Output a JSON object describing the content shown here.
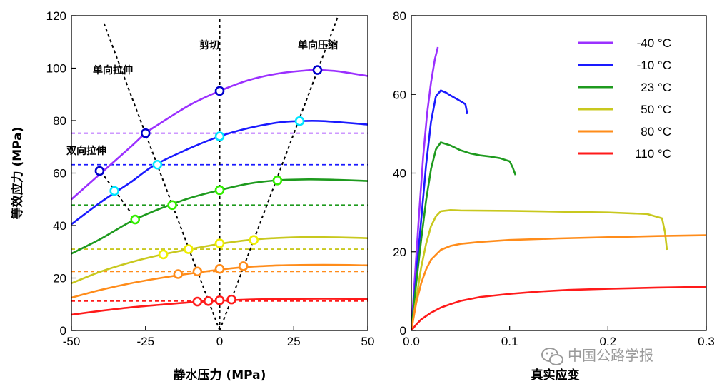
{
  "chart_data": [
    {
      "type": "line",
      "xlabel": "静水压力 (MPa)",
      "ylabel": "等效应力 (MPa)",
      "xlim": [
        -50,
        50
      ],
      "ylim": [
        0,
        120
      ],
      "xticks": [
        -50,
        -25,
        0,
        25,
        50
      ],
      "yticks": [
        0,
        20,
        40,
        60,
        80,
        100,
        120
      ],
      "grid": false,
      "series": [
        {
          "color": "#9b30ff",
          "x": [
            -50,
            -40,
            -30,
            -25,
            -20,
            -10,
            0,
            10,
            20,
            30,
            33,
            40,
            50
          ],
          "y": [
            50,
            60,
            70,
            75.2,
            79,
            86,
            91.3,
            95.5,
            98,
            99.2,
            99.3,
            98.8,
            97
          ]
        },
        {
          "color": "#1a1aff",
          "x": [
            -50,
            -40,
            -30,
            -22,
            -10,
            0,
            10,
            20,
            27,
            35,
            50
          ],
          "y": [
            40.5,
            49,
            56.5,
            63,
            69.5,
            74,
            77.2,
            79.3,
            79.8,
            79.8,
            78.5
          ]
        },
        {
          "color": "#1e9a1e",
          "x": [
            -50,
            -40,
            -30,
            -20,
            -10,
            0,
            10,
            19,
            30,
            40,
            50
          ],
          "y": [
            29.3,
            35,
            41.5,
            46.5,
            50.5,
            53.5,
            56,
            57.2,
            57.6,
            57.4,
            57
          ]
        },
        {
          "color": "#c8c81e",
          "x": [
            -50,
            -40,
            -30,
            -20,
            -10,
            0,
            10,
            20,
            30,
            40,
            50
          ],
          "y": [
            18,
            22.5,
            26,
            28.8,
            31,
            33,
            34.5,
            35.3,
            35.6,
            35.5,
            35.2
          ]
        },
        {
          "color": "#ff8c1a",
          "x": [
            -50,
            -40,
            -30,
            -20,
            -10,
            0,
            10,
            20,
            30,
            40,
            50
          ],
          "y": [
            12.5,
            15.5,
            18,
            20,
            21.7,
            23.2,
            24.3,
            24.8,
            25,
            25,
            24.8
          ]
        },
        {
          "color": "#ff1a1a",
          "x": [
            -50,
            -40,
            -30,
            -20,
            -10,
            0,
            10,
            20,
            30,
            40,
            50
          ],
          "y": [
            6,
            7.5,
            8.8,
            9.8,
            10.7,
            11.3,
            11.8,
            12,
            12.1,
            12.1,
            12
          ]
        }
      ],
      "dashed_refs": [
        {
          "color": "#9b30ff",
          "y": 75.2
        },
        {
          "color": "#1a1aff",
          "y": 63.2
        },
        {
          "color": "#1e9a1e",
          "y": 47.8
        },
        {
          "color": "#c8c81e",
          "y": 31
        },
        {
          "color": "#ff8c1a",
          "y": 22.5
        },
        {
          "color": "#ff1a1a",
          "y": 11.2
        }
      ],
      "stress_state_lines": [
        {
          "label": "单向拉伸",
          "x": [
            -39,
            0
          ],
          "y": [
            117,
            0
          ]
        },
        {
          "label": "剪切",
          "x": [
            0,
            0
          ],
          "y": [
            0,
            120
          ]
        },
        {
          "label": "单向压缩",
          "x": [
            0,
            40
          ],
          "y": [
            0,
            120
          ]
        },
        {
          "label": "双向拉伸",
          "x": [
            -40,
            -30
          ],
          "y": [
            60.5,
            45
          ]
        }
      ],
      "markers": [
        {
          "color": "#0000cc",
          "x": -25,
          "y": 75.2
        },
        {
          "color": "#0000cc",
          "x": 0,
          "y": 91.3
        },
        {
          "color": "#0000cc",
          "x": 33,
          "y": 99.3
        },
        {
          "color": "#0000cc",
          "x": -40.5,
          "y": 60.8
        },
        {
          "color": "#00e5ff",
          "x": -21,
          "y": 63.2
        },
        {
          "color": "#00e5ff",
          "x": 0,
          "y": 74
        },
        {
          "color": "#00e5ff",
          "x": 27,
          "y": 79.8
        },
        {
          "color": "#00e5ff",
          "x": -35.5,
          "y": 53.2
        },
        {
          "color": "#33ee00",
          "x": -16,
          "y": 47.8
        },
        {
          "color": "#33ee00",
          "x": 0,
          "y": 53.5
        },
        {
          "color": "#33ee00",
          "x": 19.5,
          "y": 57.2
        },
        {
          "color": "#33ee00",
          "x": -28.5,
          "y": 42.3
        },
        {
          "color": "#eeee00",
          "x": -10.5,
          "y": 31
        },
        {
          "color": "#eeee00",
          "x": 0,
          "y": 33.2
        },
        {
          "color": "#eeee00",
          "x": 11.5,
          "y": 34.5
        },
        {
          "color": "#eeee00",
          "x": -19,
          "y": 29
        },
        {
          "color": "#ff8c1a",
          "x": -7.5,
          "y": 22.5
        },
        {
          "color": "#ff8c1a",
          "x": 0,
          "y": 23.5
        },
        {
          "color": "#ff8c1a",
          "x": 8,
          "y": 24.5
        },
        {
          "color": "#ff8c1a",
          "x": -14,
          "y": 21.5
        },
        {
          "color": "#ff1a1a",
          "x": -3.8,
          "y": 11.2
        },
        {
          "color": "#ff1a1a",
          "x": 0,
          "y": 11.5
        },
        {
          "color": "#ff1a1a",
          "x": 4,
          "y": 11.8
        },
        {
          "color": "#ff1a1a",
          "x": -7.5,
          "y": 11
        }
      ]
    },
    {
      "type": "line",
      "xlabel": "真实应变",
      "ylabel": "",
      "xlim": [
        0,
        0.3
      ],
      "ylim": [
        0,
        80
      ],
      "xticks": [
        0.0,
        0.1,
        0.2,
        0.3
      ],
      "xtick_labels": [
        "0.0",
        "0.1",
        "0.2",
        "0.3"
      ],
      "yticks": [
        0,
        20,
        40,
        60,
        80
      ],
      "grid": false,
      "legend_position": "top-right",
      "legend_unit": "°C",
      "series": [
        {
          "name": "-40",
          "color": "#9b30ff",
          "x": [
            0,
            0.004,
            0.008,
            0.012,
            0.016,
            0.02,
            0.024,
            0.027
          ],
          "y": [
            0,
            15,
            30,
            44,
            55,
            63,
            69,
            72
          ]
        },
        {
          "name": "-10",
          "color": "#1a1aff",
          "x": [
            0,
            0.005,
            0.01,
            0.015,
            0.02,
            0.025,
            0.03,
            0.035,
            0.04,
            0.045,
            0.05,
            0.055,
            0.057
          ],
          "y": [
            0,
            14,
            28,
            42,
            53,
            59.5,
            61,
            60.5,
            59.7,
            59,
            58.3,
            57.5,
            55
          ]
        },
        {
          "name": "23",
          "color": "#1e9a1e",
          "x": [
            0,
            0.005,
            0.01,
            0.015,
            0.02,
            0.025,
            0.03,
            0.04,
            0.05,
            0.06,
            0.07,
            0.08,
            0.09,
            0.1,
            0.103,
            0.106
          ],
          "y": [
            0,
            12,
            23,
            33,
            41,
            46,
            47.8,
            47,
            45.8,
            45,
            44.5,
            44.2,
            43.8,
            43,
            41.5,
            39.5
          ]
        },
        {
          "name": "50",
          "color": "#c8c81e",
          "x": [
            0,
            0.005,
            0.01,
            0.015,
            0.02,
            0.025,
            0.03,
            0.04,
            0.05,
            0.1,
            0.15,
            0.2,
            0.24,
            0.255,
            0.258,
            0.26
          ],
          "y": [
            0,
            8,
            16,
            22,
            26.5,
            29,
            30.3,
            30.6,
            30.5,
            30.4,
            30.2,
            30,
            29.6,
            28.5,
            25,
            20.5
          ]
        },
        {
          "name": "80",
          "color": "#ff8c1a",
          "x": [
            0,
            0.005,
            0.01,
            0.015,
            0.02,
            0.03,
            0.04,
            0.05,
            0.07,
            0.1,
            0.15,
            0.2,
            0.25,
            0.3
          ],
          "y": [
            0,
            7,
            12,
            15.5,
            18,
            20.5,
            21.5,
            22,
            22.5,
            23,
            23.4,
            23.7,
            24,
            24.2
          ]
        },
        {
          "name": "110",
          "color": "#ff1a1a",
          "x": [
            0,
            0.005,
            0.01,
            0.02,
            0.03,
            0.04,
            0.05,
            0.07,
            0.1,
            0.13,
            0.16,
            0.2,
            0.25,
            0.3
          ],
          "y": [
            0,
            1.5,
            2.8,
            4.5,
            5.8,
            6.7,
            7.5,
            8.5,
            9.3,
            9.9,
            10.3,
            10.6,
            10.9,
            11.1
          ]
        }
      ]
    }
  ],
  "watermark": {
    "text": "中国公路学报"
  }
}
